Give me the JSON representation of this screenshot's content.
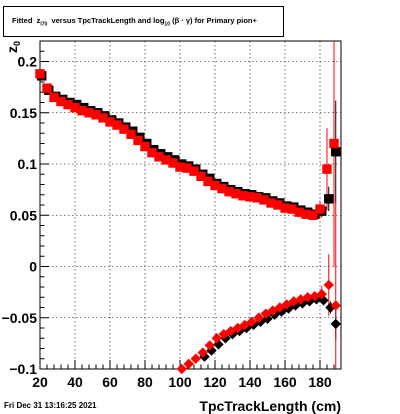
{
  "title": {
    "prefix": "Fitted",
    "z_sym": "z",
    "z_sub": "I70",
    "middle": "versus TpcTrackLength and log",
    "log_sub": "10",
    "suffix": "(β · γ) for Primary pion+"
  },
  "footer": {
    "date": "Fri Dec 31 13:16:25 2021"
  },
  "colors": {
    "series_black": "#000000",
    "series_red": "#ff0000",
    "frame": "#000000",
    "grid": "#000000"
  },
  "chart_data": {
    "type": "scatter",
    "xlabel": "TpcTrackLength (cm)",
    "ylabel": "z",
    "ylabel_sub": "0",
    "xlim": [
      20,
      192
    ],
    "ylim": [
      -0.1,
      0.22
    ],
    "grid": true,
    "x_ticks": [
      20,
      40,
      60,
      80,
      100,
      120,
      140,
      160,
      180
    ],
    "x_tick_labels": [
      "20",
      "40",
      "60",
      "80",
      "100",
      "120",
      "140",
      "160",
      "180"
    ],
    "y_ticks": [
      -0.1,
      -0.05,
      0,
      0.05,
      0.1,
      0.15,
      0.2
    ],
    "y_tick_labels": [
      "−0.1",
      "−0.05",
      "0",
      "0.05",
      "0.1",
      "0.15",
      "0.2"
    ],
    "series": [
      {
        "marker": "square",
        "color": "#000000",
        "x": [
          21,
          25,
          29,
          33,
          37,
          41,
          45,
          49,
          53,
          57,
          61,
          65,
          69,
          73,
          77,
          81,
          85,
          89,
          93,
          97,
          101,
          105,
          109,
          113,
          117,
          121,
          125,
          129,
          133,
          137,
          141,
          145,
          149,
          153,
          157,
          161,
          165,
          169,
          173,
          177,
          181,
          185,
          189
        ],
        "y": [
          0.186,
          0.172,
          0.166,
          0.163,
          0.16,
          0.158,
          0.155,
          0.152,
          0.15,
          0.147,
          0.143,
          0.14,
          0.136,
          0.132,
          0.126,
          0.12,
          0.114,
          0.11,
          0.107,
          0.104,
          0.1,
          0.098,
          0.095,
          0.09,
          0.086,
          0.081,
          0.078,
          0.075,
          0.073,
          0.071,
          0.07,
          0.068,
          0.067,
          0.064,
          0.062,
          0.059,
          0.058,
          0.055,
          0.053,
          0.051,
          0.054,
          0.066,
          0.112
        ],
        "err": [
          0.003,
          0.002,
          0.002,
          0.002,
          0.002,
          0.002,
          0.002,
          0.002,
          0.002,
          0.002,
          0.002,
          0.002,
          0.002,
          0.002,
          0.002,
          0.002,
          0.002,
          0.002,
          0.002,
          0.002,
          0.002,
          0.002,
          0.002,
          0.002,
          0.002,
          0.002,
          0.002,
          0.002,
          0.002,
          0.002,
          0.002,
          0.002,
          0.002,
          0.002,
          0.002,
          0.002,
          0.002,
          0.003,
          0.003,
          0.004,
          0.006,
          0.012,
          0.05
        ]
      },
      {
        "marker": "square",
        "color": "#ff0000",
        "x": [
          20,
          24,
          28,
          32,
          36,
          40,
          44,
          48,
          52,
          56,
          60,
          64,
          68,
          72,
          76,
          80,
          84,
          88,
          92,
          96,
          100,
          104,
          108,
          112,
          116,
          120,
          124,
          128,
          132,
          136,
          140,
          144,
          148,
          152,
          156,
          160,
          164,
          168,
          172,
          176,
          180,
          184,
          188
        ],
        "y": [
          0.188,
          0.174,
          0.165,
          0.161,
          0.158,
          0.155,
          0.152,
          0.15,
          0.148,
          0.145,
          0.141,
          0.138,
          0.134,
          0.129,
          0.123,
          0.117,
          0.111,
          0.107,
          0.104,
          0.101,
          0.097,
          0.096,
          0.093,
          0.088,
          0.083,
          0.079,
          0.076,
          0.073,
          0.071,
          0.069,
          0.068,
          0.067,
          0.065,
          0.062,
          0.06,
          0.057,
          0.056,
          0.053,
          0.051,
          0.05,
          0.056,
          0.095,
          0.12
        ],
        "err": [
          0.003,
          0.002,
          0.002,
          0.002,
          0.002,
          0.002,
          0.002,
          0.002,
          0.002,
          0.002,
          0.002,
          0.002,
          0.002,
          0.002,
          0.002,
          0.002,
          0.002,
          0.002,
          0.002,
          0.002,
          0.002,
          0.002,
          0.002,
          0.002,
          0.002,
          0.002,
          0.002,
          0.002,
          0.002,
          0.002,
          0.002,
          0.002,
          0.002,
          0.002,
          0.002,
          0.002,
          0.002,
          0.003,
          0.003,
          0.004,
          0.008,
          0.04,
          0.12
        ]
      },
      {
        "marker": "diamond",
        "color": "#000000",
        "x": [
          114,
          118,
          122,
          126,
          130,
          134,
          138,
          142,
          146,
          150,
          154,
          158,
          162,
          166,
          170,
          174,
          178,
          182,
          186,
          189
        ],
        "y": [
          -0.088,
          -0.082,
          -0.076,
          -0.07,
          -0.066,
          -0.063,
          -0.06,
          -0.057,
          -0.054,
          -0.051,
          -0.047,
          -0.044,
          -0.041,
          -0.038,
          -0.036,
          -0.034,
          -0.032,
          -0.033,
          -0.04,
          -0.056
        ],
        "err": [
          0.002,
          0.002,
          0.002,
          0.002,
          0.002,
          0.002,
          0.002,
          0.002,
          0.002,
          0.002,
          0.002,
          0.002,
          0.002,
          0.002,
          0.002,
          0.003,
          0.003,
          0.004,
          0.006,
          0.015
        ]
      },
      {
        "marker": "diamond",
        "color": "#ff0000",
        "x": [
          101,
          105,
          109,
          113,
          117,
          121,
          125,
          129,
          133,
          137,
          141,
          145,
          149,
          153,
          157,
          161,
          165,
          169,
          173,
          177,
          181,
          185,
          189
        ],
        "y": [
          -0.1,
          -0.095,
          -0.09,
          -0.084,
          -0.077,
          -0.07,
          -0.066,
          -0.063,
          -0.06,
          -0.057,
          -0.054,
          -0.05,
          -0.046,
          -0.043,
          -0.04,
          -0.037,
          -0.034,
          -0.032,
          -0.03,
          -0.029,
          -0.027,
          -0.018,
          -0.038
        ],
        "err": [
          0.002,
          0.002,
          0.002,
          0.002,
          0.002,
          0.002,
          0.002,
          0.002,
          0.002,
          0.002,
          0.002,
          0.002,
          0.002,
          0.002,
          0.002,
          0.002,
          0.002,
          0.003,
          0.003,
          0.004,
          0.008,
          0.03,
          0.1
        ]
      }
    ]
  }
}
